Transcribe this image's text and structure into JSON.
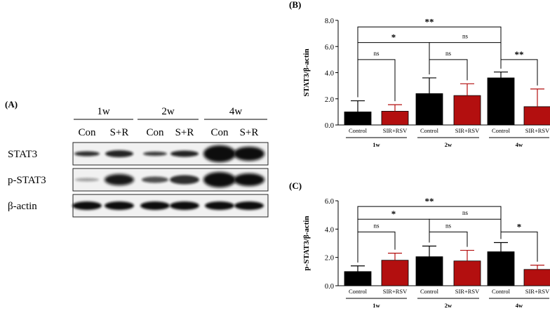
{
  "figure": {
    "blot": {
      "panel_label": "(A)",
      "weeks": [
        "1w",
        "2w",
        "4w"
      ],
      "lanes": [
        "Con",
        "S+R",
        "Con",
        "S+R",
        "Con",
        "S+R"
      ],
      "rows": [
        "STAT3",
        "p-STAT3",
        "β-actin"
      ]
    }
  },
  "chart_data": [
    {
      "type": "bar",
      "panel_label": "(B)",
      "ylabel": "STAT3/β-actin",
      "ylim": [
        0,
        8
      ],
      "yticks": [
        "0.0",
        "2.0",
        "4.0",
        "6.0",
        "8.0"
      ],
      "categories": [
        "Control",
        "SIR+RSV",
        "Control",
        "SIR+RSV",
        "Control",
        "SIR+RSV"
      ],
      "groups": [
        "1w",
        "2w",
        "4w"
      ],
      "values": [
        1.0,
        1.05,
        2.4,
        2.25,
        3.6,
        1.4
      ],
      "errors": [
        0.85,
        0.5,
        1.2,
        0.9,
        0.45,
        1.35
      ],
      "colors": [
        "#000000",
        "#b30f0f"
      ],
      "significance": [
        {
          "label": "ns",
          "from": 0,
          "to": 1,
          "level": 5.0
        },
        {
          "label": "ns",
          "from": 2,
          "to": 3,
          "level": 5.0
        },
        {
          "label": "**",
          "from": 4,
          "to": 5,
          "level": 5.0
        },
        {
          "label": "*",
          "from": 0,
          "to": 2,
          "level": 6.3
        },
        {
          "label": "ns",
          "from": 2,
          "to": 4,
          "level": 6.3
        },
        {
          "label": "**",
          "from": 0,
          "to": 4,
          "level": 7.5
        }
      ]
    },
    {
      "type": "bar",
      "panel_label": "(C)",
      "ylabel": "p-STAT3/β-actin",
      "ylim": [
        0,
        6
      ],
      "yticks": [
        "0.0",
        "2.0",
        "4.0",
        "6.0"
      ],
      "categories": [
        "Control",
        "SIR+RSV",
        "Control",
        "SIR+RSV",
        "Control",
        "SIR+RSV"
      ],
      "groups": [
        "1w",
        "2w",
        "4w"
      ],
      "values": [
        1.0,
        1.8,
        2.05,
        1.75,
        2.4,
        1.15
      ],
      "errors": [
        0.4,
        0.5,
        0.75,
        0.75,
        0.65,
        0.3
      ],
      "colors": [
        "#000000",
        "#b30f0f"
      ],
      "significance": [
        {
          "label": "ns",
          "from": 0,
          "to": 1,
          "level": 3.8
        },
        {
          "label": "ns",
          "from": 2,
          "to": 3,
          "level": 3.8
        },
        {
          "label": "*",
          "from": 4,
          "to": 5,
          "level": 3.8
        },
        {
          "label": "*",
          "from": 0,
          "to": 2,
          "level": 4.7
        },
        {
          "label": "ns",
          "from": 2,
          "to": 4,
          "level": 4.7
        },
        {
          "label": "**",
          "from": 0,
          "to": 4,
          "level": 5.6
        }
      ]
    }
  ]
}
